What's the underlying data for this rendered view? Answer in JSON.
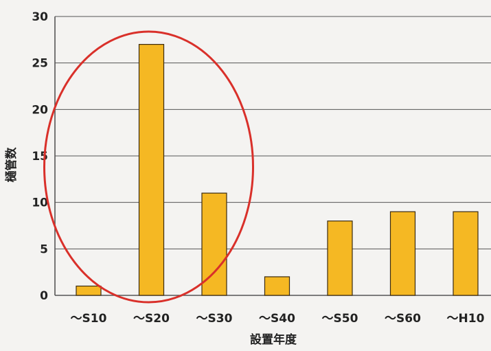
{
  "chart_data": {
    "type": "bar",
    "title": "",
    "xlabel": "設置年度",
    "ylabel": "樋管数",
    "categories": [
      "～S10",
      "～S20",
      "～S30",
      "～S40",
      "～S50",
      "～S60",
      "～H10"
    ],
    "values": [
      1,
      27,
      11,
      2,
      8,
      9,
      9
    ],
    "ylim": [
      0,
      30
    ],
    "yticks": [
      0,
      5,
      10,
      15,
      20,
      25,
      30
    ],
    "grid": "horizontal",
    "legend": "none",
    "colors": {
      "bar_fill": "#f5b823",
      "bar_stroke": "#3a2a10",
      "grid": "#555555",
      "highlight_ellipse": "#d9302a"
    },
    "annotation": {
      "shape": "ellipse",
      "highlighted_categories": [
        "～S10",
        "～S20",
        "～S30"
      ]
    }
  }
}
